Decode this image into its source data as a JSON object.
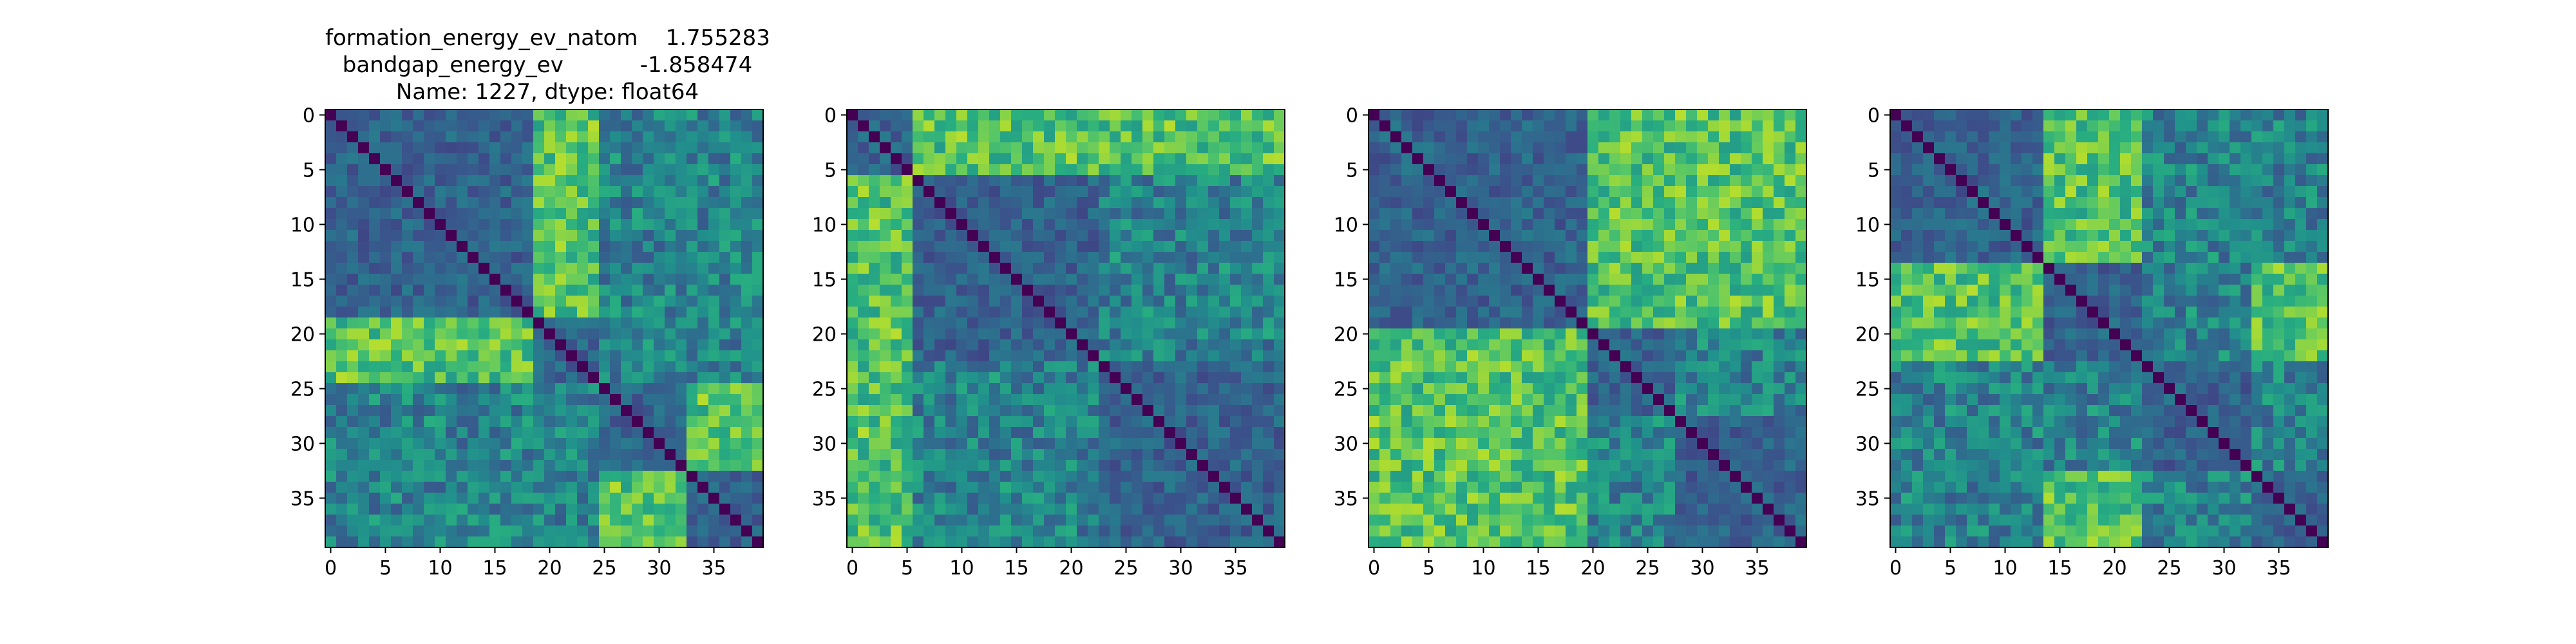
{
  "title_lines": [
    "formation_energy_ev_natom    1.755283",
    "bandgap_energy_ev           -1.858474",
    "Name: 1227, dtype: float64"
  ],
  "chart_data": [
    {
      "type": "heatmap",
      "size": 40,
      "colormap": "viridis",
      "value_range": [
        0,
        1
      ],
      "xticks": [
        0,
        5,
        10,
        15,
        20,
        25,
        30,
        35
      ],
      "yticks": [
        0,
        5,
        10,
        15,
        20,
        25,
        30,
        35
      ],
      "groups": [
        [
          0,
          18
        ],
        [
          19,
          24
        ],
        [
          25,
          32
        ],
        [
          33,
          39
        ]
      ],
      "seed": 11,
      "strong": [
        [
          0,
          1
        ],
        [
          2,
          3
        ]
      ]
    },
    {
      "type": "heatmap",
      "size": 40,
      "colormap": "viridis",
      "value_range": [
        0,
        1
      ],
      "xticks": [
        0,
        5,
        10,
        15,
        20,
        25,
        30,
        35
      ],
      "yticks": [
        0,
        5,
        10,
        15,
        20,
        25,
        30,
        35
      ],
      "groups": [
        [
          0,
          5
        ],
        [
          6,
          22
        ],
        [
          23,
          39
        ]
      ],
      "seed": 23,
      "strong": [
        [
          0,
          2
        ],
        [
          0,
          1
        ]
      ]
    },
    {
      "type": "heatmap",
      "size": 40,
      "colormap": "viridis",
      "value_range": [
        0,
        1
      ],
      "xticks": [
        0,
        5,
        10,
        15,
        20,
        25,
        30,
        35
      ],
      "yticks": [
        0,
        5,
        10,
        15,
        20,
        25,
        30,
        35
      ],
      "groups": [
        [
          0,
          19
        ],
        [
          20,
          27
        ],
        [
          28,
          39
        ]
      ],
      "seed": 37,
      "strong": [
        [
          0,
          1
        ],
        [
          0,
          2
        ]
      ]
    },
    {
      "type": "heatmap",
      "size": 40,
      "colormap": "viridis",
      "value_range": [
        0,
        1
      ],
      "xticks": [
        0,
        5,
        10,
        15,
        20,
        25,
        30,
        35
      ],
      "yticks": [
        0,
        5,
        10,
        15,
        20,
        25,
        30,
        35
      ],
      "groups": [
        [
          0,
          13
        ],
        [
          14,
          22
        ],
        [
          23,
          32
        ],
        [
          33,
          39
        ]
      ],
      "seed": 53,
      "strong": [
        [
          0,
          1
        ],
        [
          1,
          3
        ]
      ]
    }
  ]
}
